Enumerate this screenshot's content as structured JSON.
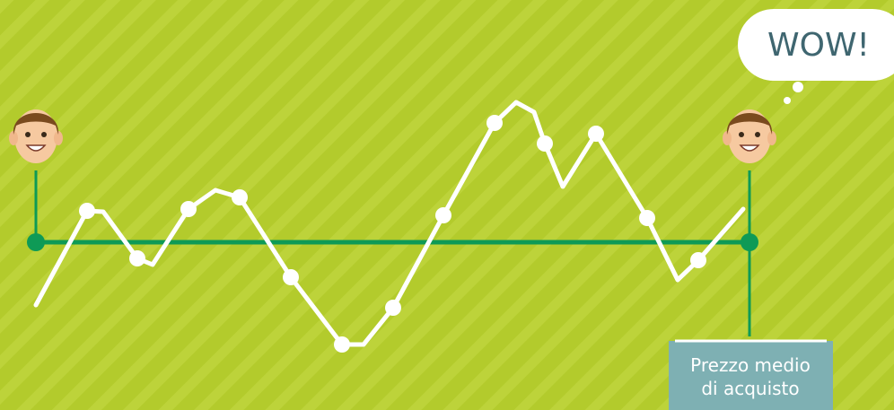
{
  "speech_bubble": {
    "text": "WOW!"
  },
  "label": {
    "lines": [
      "Prezzo medio",
      "di acquisto"
    ]
  }
}
